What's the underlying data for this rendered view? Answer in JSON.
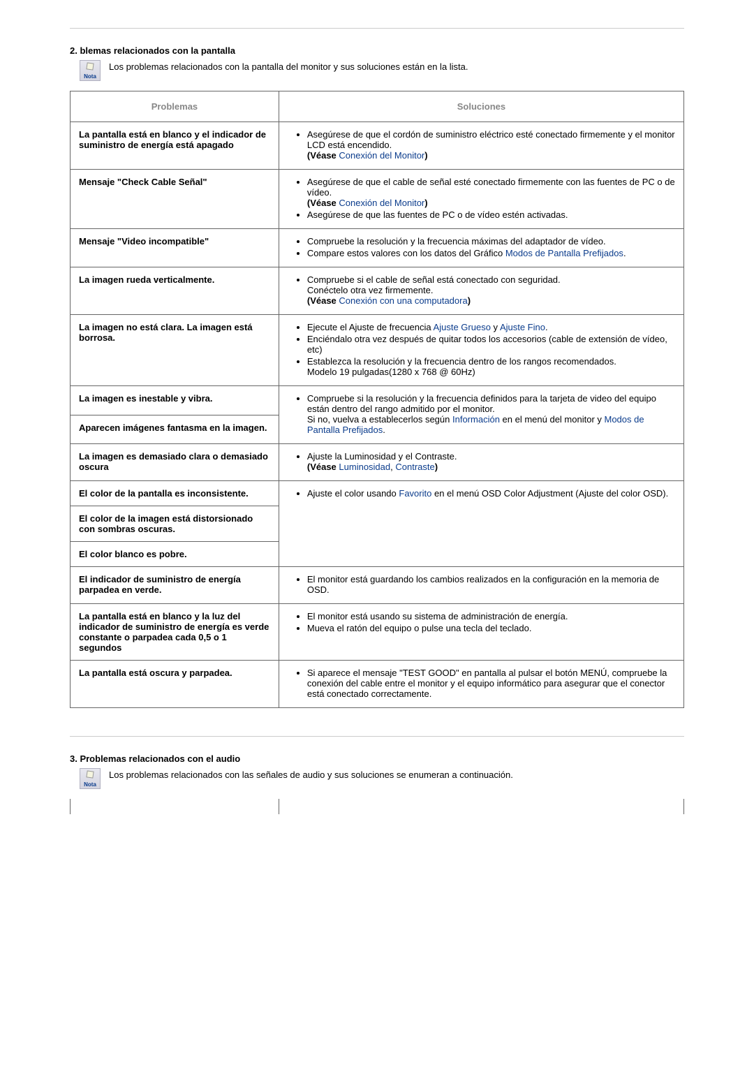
{
  "section2": {
    "title": "2. blemas relacionados con la pantalla",
    "nota_label": "Nota",
    "nota_text": "Los problemas relacionados con la pantalla del monitor y sus soluciones están en la lista.",
    "header_problems": "Problemas",
    "header_solutions": "Soluciones",
    "rows": {
      "r1": {
        "problem": "La pantalla está en blanco y el indicador de suministro de energía está apagado",
        "s1": "Asegúrese de que el cordón de suministro eléctrico esté conectado firmemente y el monitor LCD está encendido.",
        "s1_vease_prefix": "(Véase ",
        "s1_link": "Conexión del Monitor",
        "s1_suffix": ")"
      },
      "r2": {
        "problem": "Mensaje \"Check Cable Señal\"",
        "s1": "Asegúrese de que el cable de señal esté conectado firmemente con las fuentes de PC o de vídeo.",
        "s1_vease_prefix": "(Véase ",
        "s1_link": "Conexión del Monitor",
        "s1_suffix": ")",
        "s2": "Asegúrese de que las fuentes de PC o de vídeo estén activadas."
      },
      "r3": {
        "problem": "Mensaje \"Video incompatible\"",
        "s1": "Compruebe la resolución y la frecuencia máximas del adaptador de vídeo.",
        "s2a": "Compare estos valores con los datos del Gráfico ",
        "s2_link": "Modos de Pantalla Prefijados",
        "s2b": "."
      },
      "r4": {
        "problem": "La imagen rueda verticalmente.",
        "s1": "Compruebe si el cable de señal está conectado con seguridad.",
        "s1b": "Conéctelo otra vez firmemente.",
        "s1_vease_prefix": "(Véase ",
        "s1_link": "Conexión con una computadora",
        "s1_suffix": ")"
      },
      "r5": {
        "problem": "La imagen no está clara. La imagen está borrosa.",
        "s1a": "Ejecute el Ajuste de frecuencia ",
        "s1_link1": "Ajuste Grueso",
        "s1_mid": " y ",
        "s1_link2": "Ajuste Fino",
        "s1b": ".",
        "s2": "Enciéndalo otra vez después de quitar todos los accesorios (cable de extensión de vídeo, etc)",
        "s3": "Establezca la resolución y la frecuencia dentro de los rangos recomendados.",
        "s3b": "Modelo 19 pulgadas(1280 x 768 @ 60Hz)"
      },
      "r6": {
        "problem": "La imagen es inestable y vibra.",
        "s1": "Compruebe si la resolución y la frecuencia definidos para la tarjeta de video del equipo están dentro del rango admitido por el monitor.",
        "s2a": "Si no, vuelva a establecerlos según ",
        "s2_link1": "Información",
        "s2_mid": " en el menú del monitor y ",
        "s2_link2": "Modos de Pantalla Prefijados",
        "s2b": "."
      },
      "r7": {
        "problem": "Aparecen imágenes fantasma en la imagen."
      },
      "r8": {
        "problem": "La imagen es demasiado clara o demasiado oscura",
        "s1": "Ajuste la Luminosidad y el Contraste.",
        "s1_vease_prefix": "(Véase ",
        "s1_link1": "Luminosidad",
        "s1_mid": ", ",
        "s1_link2": "Contraste",
        "s1_suffix": ")"
      },
      "r9": {
        "problem": "El color de la pantalla es inconsistente.",
        "s1a": "Ajuste el color usando ",
        "s1_link": "Favorito",
        "s1b": " en el menú OSD Color Adjustment (Ajuste del color OSD)."
      },
      "r10": {
        "problem": "El color de la imagen está distorsionado con sombras oscuras."
      },
      "r11": {
        "problem": "El color blanco es pobre."
      },
      "r12": {
        "problem": "El indicador de suministro de energía parpadea en verde.",
        "s1": "El monitor está guardando los cambios realizados en la configuración en la memoria de OSD."
      },
      "r13": {
        "problem": "La pantalla está en blanco y la luz del indicador de suministro de energía es verde constante o parpadea cada 0,5 o 1 segundos",
        "s1": "El monitor está usando su sistema de administración de energía.",
        "s2": "Mueva el ratón del equipo o pulse una tecla del teclado."
      },
      "r14": {
        "problem": "La pantalla está oscura y parpadea.",
        "s1": "Si aparece el mensaje \"TEST GOOD\" en pantalla al pulsar el botón MENÚ, compruebe la conexión del cable entre el monitor y el equipo informático para asegurar que el conector está conectado correctamente."
      }
    }
  },
  "section3": {
    "title": "3. Problemas relacionados con el audio",
    "nota_label": "Nota",
    "nota_text": "Los problemas relacionados con las señales de audio y sus soluciones se enumeran a continuación."
  }
}
